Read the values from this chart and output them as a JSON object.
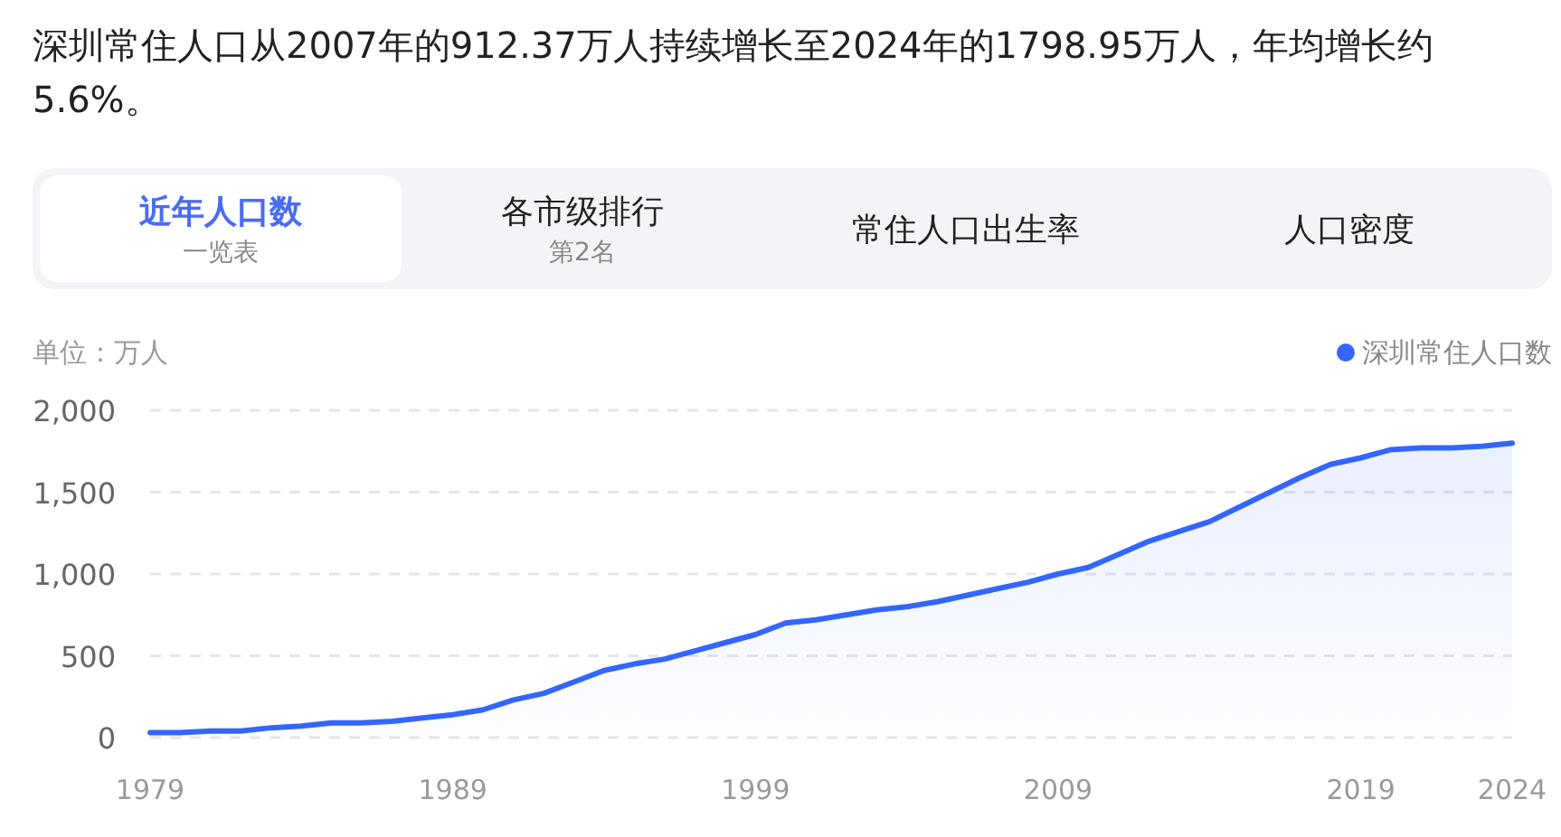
{
  "chart_data": {
    "type": "area",
    "title": "深圳常住人口从2007年的912.37万人持续增长至2024年的1798.95万人，年均增长约5.6%。",
    "annotations": [
      "近年人口数",
      "一览表",
      "各市级排行",
      "第2名",
      "常住人口出生率",
      "人口密度"
    ],
    "ylabel": "单位：万人",
    "x": [
      1979,
      1980,
      1981,
      1982,
      1983,
      1984,
      1985,
      1986,
      1987,
      1988,
      1989,
      1990,
      1991,
      1992,
      1993,
      1994,
      1995,
      1996,
      1997,
      1998,
      1999,
      2000,
      2001,
      2002,
      2003,
      2004,
      2005,
      2006,
      2007,
      2008,
      2009,
      2010,
      2011,
      2012,
      2013,
      2014,
      2015,
      2016,
      2017,
      2018,
      2019,
      2020,
      2021,
      2022,
      2023,
      2024
    ],
    "series": [
      {
        "name": "深圳常住人口数",
        "color": "#3366ff",
        "values": [
          30,
          30,
          40,
          40,
          60,
          70,
          90,
          90,
          100,
          120,
          140,
          170,
          230,
          270,
          340,
          410,
          450,
          480,
          530,
          580,
          630,
          700,
          720,
          750,
          780,
          800,
          830,
          870,
          910,
          950,
          1000,
          1040,
          1120,
          1200,
          1260,
          1320,
          1410,
          1500,
          1590,
          1670,
          1710,
          1760,
          1770,
          1770,
          1780,
          1800
        ]
      }
    ],
    "xlim": [
      1979,
      2024
    ],
    "xticks": [
      1979,
      1989,
      1999,
      2009,
      2019,
      2024
    ],
    "ylim": [
      0,
      2000
    ],
    "yticks": [
      0,
      500,
      {
        "value": 1000,
        "label": "1,000"
      },
      {
        "value": 1500,
        "label": "1,500"
      },
      {
        "value": 2000,
        "label": "2,000"
      }
    ],
    "grid": "y",
    "legend": "top right"
  }
}
